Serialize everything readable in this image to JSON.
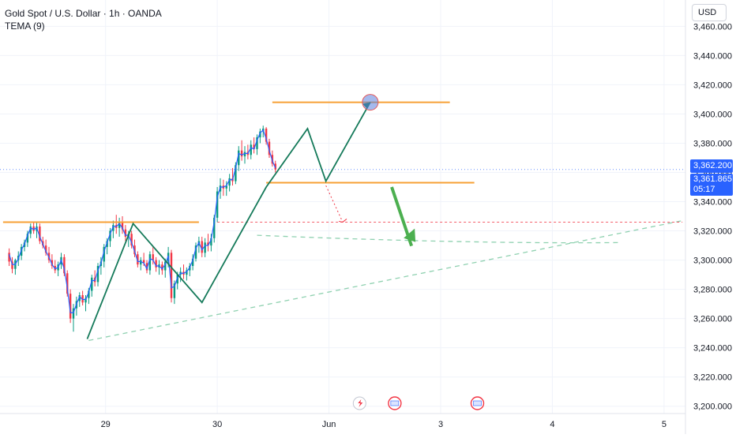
{
  "header": {
    "title": "Gold Spot / U.S. Dollar · 1h · OANDA",
    "indicator": "TEMA (9)"
  },
  "currency_button": "USD",
  "price_tags": {
    "last_price": "3,362.200",
    "current_price": "3,361.865",
    "countdown": "05:17"
  },
  "colors": {
    "up": "#26a69a",
    "up_body": "#089981",
    "down": "#f23645",
    "tema": "#2962ff",
    "level": "#f7a035",
    "trend": "#157a5a",
    "arrow": "#4caf50",
    "dashed": "#8fd1b0",
    "target_circle": "#5b7fde",
    "red_dotted": "#f23645"
  },
  "chart_data": {
    "type": "candlestick",
    "title": "Gold Spot / U.S. Dollar · 1h · OANDA",
    "y_ticks": [
      3200,
      3220,
      3240,
      3260,
      3280,
      3300,
      3320,
      3340,
      3360,
      3380,
      3400,
      3420,
      3440,
      3460
    ],
    "y_tick_labels": [
      "3,200.000",
      "3,220.000",
      "3,240.000",
      "3,260.000",
      "3,280.000",
      "3,300.000",
      "3,320.000",
      "3,340.000",
      "3,360.000",
      "3,380.000",
      "3,400.000",
      "3,420.000",
      "3,440.000",
      "3,460.000"
    ],
    "ylim": [
      3195,
      3478
    ],
    "x_ticks": [
      {
        "label": "29",
        "bar": 31.5
      },
      {
        "label": "30",
        "bar": 68
      },
      {
        "label": "Jun",
        "bar": 104.5
      },
      {
        "label": "3",
        "bar": 141
      },
      {
        "label": "4",
        "bar": 177.5
      },
      {
        "label": "5",
        "bar": 214
      }
    ],
    "xlim": [
      -3,
      221
    ],
    "candles": [
      [
        3305,
        3308,
        3296,
        3299
      ],
      [
        3299,
        3302,
        3291,
        3294
      ],
      [
        3294,
        3301,
        3290,
        3300
      ],
      [
        3300,
        3306,
        3296,
        3303
      ],
      [
        3303,
        3311,
        3300,
        3309
      ],
      [
        3309,
        3314,
        3306,
        3312
      ],
      [
        3312,
        3320,
        3309,
        3318
      ],
      [
        3318,
        3325,
        3315,
        3323
      ],
      [
        3323,
        3326,
        3318,
        3320
      ],
      [
        3320,
        3326,
        3315,
        3323
      ],
      [
        3323,
        3325,
        3311,
        3313
      ],
      [
        3313,
        3316,
        3308,
        3310
      ],
      [
        3310,
        3314,
        3303,
        3305
      ],
      [
        3305,
        3309,
        3298,
        3300
      ],
      [
        3300,
        3304,
        3294,
        3296
      ],
      [
        3296,
        3300,
        3291,
        3293
      ],
      [
        3293,
        3299,
        3289,
        3297
      ],
      [
        3297,
        3305,
        3294,
        3302
      ],
      [
        3302,
        3304,
        3289,
        3291
      ],
      [
        3291,
        3293,
        3275,
        3277
      ],
      [
        3277,
        3280,
        3257,
        3260
      ],
      [
        3260,
        3270,
        3251,
        3267
      ],
      [
        3267,
        3275,
        3262,
        3272
      ],
      [
        3272,
        3278,
        3268,
        3276
      ],
      [
        3276,
        3279,
        3269,
        3271
      ],
      [
        3271,
        3276,
        3265,
        3274
      ],
      [
        3274,
        3281,
        3270,
        3279
      ],
      [
        3279,
        3290,
        3275,
        3288
      ],
      [
        3288,
        3293,
        3282,
        3285
      ],
      [
        3285,
        3298,
        3282,
        3296
      ],
      [
        3296,
        3302,
        3290,
        3299
      ],
      [
        3299,
        3311,
        3295,
        3309
      ],
      [
        3309,
        3315,
        3304,
        3313
      ],
      [
        3313,
        3322,
        3309,
        3320
      ],
      [
        3320,
        3327,
        3315,
        3324
      ],
      [
        3324,
        3331,
        3318,
        3322
      ],
      [
        3322,
        3329,
        3316,
        3326
      ],
      [
        3326,
        3330,
        3318,
        3321
      ],
      [
        3321,
        3324,
        3313,
        3316
      ],
      [
        3316,
        3320,
        3309,
        3318
      ],
      [
        3318,
        3320,
        3308,
        3310
      ],
      [
        3310,
        3314,
        3302,
        3304
      ],
      [
        3304,
        3306,
        3295,
        3297
      ],
      [
        3297,
        3302,
        3293,
        3300
      ],
      [
        3300,
        3305,
        3296,
        3298
      ],
      [
        3298,
        3300,
        3291,
        3293
      ],
      [
        3293,
        3306,
        3290,
        3304
      ],
      [
        3304,
        3309,
        3297,
        3300
      ],
      [
        3300,
        3302,
        3292,
        3295
      ],
      [
        3295,
        3300,
        3290,
        3297
      ],
      [
        3297,
        3299,
        3290,
        3293
      ],
      [
        3293,
        3301,
        3288,
        3299
      ],
      [
        3299,
        3309,
        3295,
        3305
      ],
      [
        3305,
        3307,
        3271,
        3274
      ],
      [
        3274,
        3286,
        3270,
        3284
      ],
      [
        3284,
        3292,
        3280,
        3290
      ],
      [
        3290,
        3295,
        3285,
        3292
      ],
      [
        3292,
        3297,
        3287,
        3290
      ],
      [
        3290,
        3295,
        3286,
        3293
      ],
      [
        3293,
        3298,
        3289,
        3296
      ],
      [
        3296,
        3304,
        3293,
        3301
      ],
      [
        3301,
        3312,
        3299,
        3310
      ],
      [
        3310,
        3316,
        3305,
        3313
      ],
      [
        3313,
        3316,
        3302,
        3305
      ],
      [
        3305,
        3315,
        3302,
        3312
      ],
      [
        3312,
        3318,
        3306,
        3310
      ],
      [
        3310,
        3318,
        3306,
        3315
      ],
      [
        3315,
        3331,
        3312,
        3329
      ],
      [
        3329,
        3350,
        3326,
        3347
      ],
      [
        3347,
        3356,
        3342,
        3351
      ],
      [
        3351,
        3355,
        3344,
        3349
      ],
      [
        3349,
        3354,
        3344,
        3351
      ],
      [
        3351,
        3359,
        3347,
        3356
      ],
      [
        3356,
        3363,
        3351,
        3354
      ],
      [
        3354,
        3367,
        3352,
        3365
      ],
      [
        3365,
        3378,
        3361,
        3375
      ],
      [
        3375,
        3382,
        3368,
        3371
      ],
      [
        3371,
        3378,
        3366,
        3374
      ],
      [
        3374,
        3379,
        3369,
        3372
      ],
      [
        3372,
        3382,
        3369,
        3379
      ],
      [
        3379,
        3384,
        3373,
        3376
      ],
      [
        3376,
        3386,
        3372,
        3384
      ],
      [
        3384,
        3390,
        3380,
        3388
      ],
      [
        3388,
        3392,
        3384,
        3390
      ],
      [
        3390,
        3391,
        3379,
        3381
      ],
      [
        3381,
        3383,
        3370,
        3372
      ],
      [
        3372,
        3375,
        3364,
        3366
      ],
      [
        3366,
        3368,
        3360,
        3362
      ]
    ],
    "tema": [
      3304,
      3297,
      3297,
      3301,
      3307,
      3311,
      3317,
      3322,
      3321,
      3322,
      3316,
      3311,
      3306,
      3302,
      3297,
      3294,
      3295,
      3300,
      3294,
      3281,
      3264,
      3264,
      3270,
      3275,
      3273,
      3273,
      3278,
      3286,
      3286,
      3293,
      3298,
      3306,
      3312,
      3318,
      3323,
      3323,
      3325,
      3322,
      3317,
      3317,
      3312,
      3306,
      3299,
      3299,
      3298,
      3294,
      3301,
      3300,
      3296,
      3296,
      3294,
      3297,
      3303,
      3281,
      3282,
      3288,
      3291,
      3291,
      3292,
      3295,
      3300,
      3308,
      3312,
      3307,
      3310,
      3310,
      3314,
      3326,
      3343,
      3350,
      3350,
      3351,
      3355,
      3355,
      3363,
      3373,
      3372,
      3373,
      3373,
      3377,
      3376,
      3382,
      3387,
      3389,
      3383,
      3375,
      3368,
      3363
    ],
    "annotations": {
      "resistance_level": 3408,
      "support_level": 3353,
      "prior_high_level": 3326,
      "red_dotted_level": 3326,
      "target_circle_price": 3408
    }
  }
}
